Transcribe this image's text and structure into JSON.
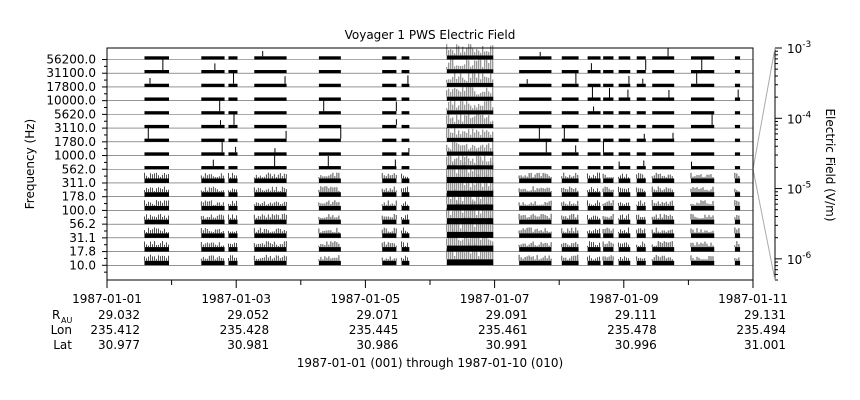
{
  "chart_data": {
    "type": "line",
    "title": "Voyager 1 PWS Electric Field",
    "ylabel": "Frequency (Hz)",
    "right_label": "Electric Field (V/m)",
    "footer": "1987-01-01 (001) through 1987-01-10 (010)",
    "channels": [
      "10.0",
      "17.8",
      "31.1",
      "56.2",
      "100.0",
      "178.0",
      "311.0",
      "562.0",
      "1000.0",
      "1780.0",
      "3110.0",
      "5620.0",
      "10000.0",
      "17800.0",
      "31100.0",
      "56200.0"
    ],
    "x": [
      "1987-01-01",
      "1987-01-03",
      "1987-01-05",
      "1987-01-07",
      "1987-01-09",
      "1987-01-11"
    ],
    "xlim": [
      "1987-01-01",
      "1987-01-11"
    ],
    "colorbar": {
      "scale": "log",
      "range": [
        5e-07,
        0.001
      ],
      "ticks": [
        {
          "value": 0.001,
          "base": "10",
          "exp": "-3"
        },
        {
          "value": 0.0001,
          "base": "10",
          "exp": "-4"
        },
        {
          "value": 1e-05,
          "base": "10",
          "exp": "-5"
        },
        {
          "value": 1e-06,
          "base": "10",
          "exp": "-6"
        }
      ]
    },
    "segments_days": [
      [
        0.58,
        0.96
      ],
      [
        1.46,
        1.82
      ],
      [
        1.88,
        2.02
      ],
      [
        2.28,
        2.78
      ],
      [
        3.28,
        3.62
      ],
      [
        4.26,
        4.48
      ],
      [
        4.56,
        4.68
      ],
      [
        5.26,
        5.98
      ],
      [
        6.38,
        6.88
      ],
      [
        7.04,
        7.3
      ],
      [
        7.44,
        7.64
      ],
      [
        7.68,
        7.84
      ],
      [
        7.92,
        8.1
      ],
      [
        8.2,
        8.34
      ],
      [
        8.44,
        8.78
      ],
      [
        9.04,
        9.4
      ],
      [
        9.72,
        9.8
      ]
    ],
    "ephemeris": {
      "r_label": "R",
      "r_sub": "AU",
      "lon_label": "Lon",
      "lat_label": "Lat",
      "r": [
        "29.032",
        "29.052",
        "29.071",
        "29.091",
        "29.111",
        "29.131"
      ],
      "lon": [
        "235.412",
        "235.428",
        "235.445",
        "235.461",
        "235.478",
        "235.494"
      ],
      "lat": [
        "30.977",
        "30.981",
        "30.986",
        "30.991",
        "30.996",
        "31.001"
      ]
    }
  }
}
